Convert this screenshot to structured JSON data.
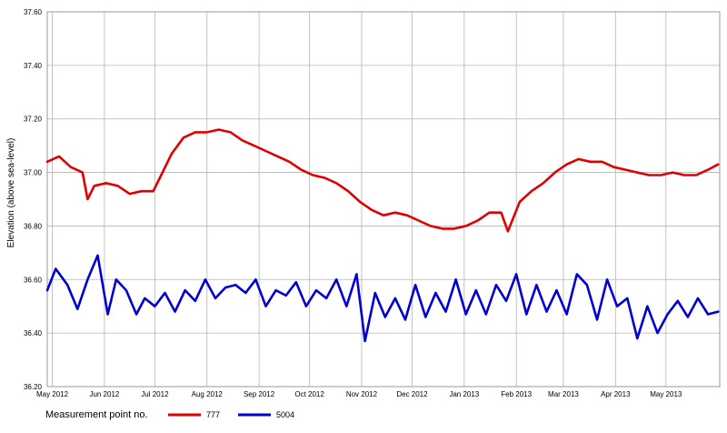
{
  "chart_data": {
    "type": "line",
    "title": "",
    "xlabel": "",
    "ylabel": "Elevation (above sea-level)",
    "ylim": [
      36.2,
      37.6
    ],
    "yticks": [
      "37.60",
      "37.40",
      "37.20",
      "37.00",
      "36.80",
      "36.60",
      "36.40",
      "36.20"
    ],
    "xlim": [
      "2012-04-28",
      "2013-06-02"
    ],
    "xticks": [
      {
        "label": "May 2012",
        "date": "2012-05-01"
      },
      {
        "label": "Jun 2012",
        "date": "2012-06-01"
      },
      {
        "label": "Jul 2012",
        "date": "2012-07-01"
      },
      {
        "label": "Aug 2012",
        "date": "2012-08-01"
      },
      {
        "label": "Sep 2012",
        "date": "2012-09-01"
      },
      {
        "label": "Oct 2012",
        "date": "2012-10-01"
      },
      {
        "label": "Nov 2012",
        "date": "2012-11-01"
      },
      {
        "label": "Dec 2012",
        "date": "2012-12-01"
      },
      {
        "label": "Jan 2013",
        "date": "2013-01-01"
      },
      {
        "label": "Feb 2013",
        "date": "2013-02-01"
      },
      {
        "label": "Mar 2013",
        "date": "2013-03-01"
      },
      {
        "label": "Apr 2013",
        "date": "2013-04-01"
      },
      {
        "label": "May 2013",
        "date": "2013-05-01"
      }
    ],
    "grid": true,
    "legend_title": "Measurement point no.",
    "legend_position": "bottom-left",
    "series": [
      {
        "name": "777",
        "color": "#e00000",
        "points": [
          [
            "2012-04-28",
            37.04
          ],
          [
            "2012-05-05",
            37.06
          ],
          [
            "2012-05-12",
            37.02
          ],
          [
            "2012-05-19",
            37.0
          ],
          [
            "2012-05-22",
            36.9
          ],
          [
            "2012-05-26",
            36.95
          ],
          [
            "2012-06-02",
            36.96
          ],
          [
            "2012-06-09",
            36.95
          ],
          [
            "2012-06-16",
            36.92
          ],
          [
            "2012-06-23",
            36.93
          ],
          [
            "2012-06-30",
            36.93
          ],
          [
            "2012-07-04",
            36.98
          ],
          [
            "2012-07-11",
            37.07
          ],
          [
            "2012-07-18",
            37.13
          ],
          [
            "2012-07-25",
            37.15
          ],
          [
            "2012-08-01",
            37.15
          ],
          [
            "2012-08-08",
            37.16
          ],
          [
            "2012-08-15",
            37.15
          ],
          [
            "2012-08-22",
            37.12
          ],
          [
            "2012-08-29",
            37.1
          ],
          [
            "2012-09-05",
            37.08
          ],
          [
            "2012-09-12",
            37.06
          ],
          [
            "2012-09-19",
            37.04
          ],
          [
            "2012-09-26",
            37.01
          ],
          [
            "2012-10-03",
            36.99
          ],
          [
            "2012-10-10",
            36.98
          ],
          [
            "2012-10-17",
            36.96
          ],
          [
            "2012-10-24",
            36.93
          ],
          [
            "2012-10-31",
            36.89
          ],
          [
            "2012-11-07",
            36.86
          ],
          [
            "2012-11-14",
            36.84
          ],
          [
            "2012-11-21",
            36.85
          ],
          [
            "2012-11-28",
            36.84
          ],
          [
            "2012-12-05",
            36.82
          ],
          [
            "2012-12-12",
            36.8
          ],
          [
            "2012-12-19",
            36.79
          ],
          [
            "2012-12-26",
            36.79
          ],
          [
            "2013-01-02",
            36.8
          ],
          [
            "2013-01-09",
            36.82
          ],
          [
            "2013-01-16",
            36.85
          ],
          [
            "2013-01-23",
            36.85
          ],
          [
            "2013-01-27",
            36.78
          ],
          [
            "2013-02-03",
            36.89
          ],
          [
            "2013-02-10",
            36.93
          ],
          [
            "2013-02-17",
            36.96
          ],
          [
            "2013-02-24",
            37.0
          ],
          [
            "2013-03-03",
            37.03
          ],
          [
            "2013-03-10",
            37.05
          ],
          [
            "2013-03-17",
            37.04
          ],
          [
            "2013-03-24",
            37.04
          ],
          [
            "2013-03-31",
            37.02
          ],
          [
            "2013-04-07",
            37.01
          ],
          [
            "2013-04-14",
            37.0
          ],
          [
            "2013-04-21",
            36.99
          ],
          [
            "2013-04-28",
            36.99
          ],
          [
            "2013-05-05",
            37.0
          ],
          [
            "2013-05-12",
            36.99
          ],
          [
            "2013-05-19",
            36.99
          ],
          [
            "2013-05-26",
            37.01
          ],
          [
            "2013-06-01",
            37.03
          ]
        ]
      },
      {
        "name": "5004",
        "color": "#0000d0",
        "points": [
          [
            "2012-04-28",
            36.56
          ],
          [
            "2012-05-03",
            36.64
          ],
          [
            "2012-05-10",
            36.58
          ],
          [
            "2012-05-16",
            36.49
          ],
          [
            "2012-05-22",
            36.6
          ],
          [
            "2012-05-28",
            36.69
          ],
          [
            "2012-06-03",
            36.47
          ],
          [
            "2012-06-08",
            36.6
          ],
          [
            "2012-06-14",
            36.56
          ],
          [
            "2012-06-20",
            36.47
          ],
          [
            "2012-06-25",
            36.53
          ],
          [
            "2012-07-01",
            36.5
          ],
          [
            "2012-07-07",
            36.55
          ],
          [
            "2012-07-13",
            36.48
          ],
          [
            "2012-07-19",
            36.56
          ],
          [
            "2012-07-25",
            36.52
          ],
          [
            "2012-07-31",
            36.6
          ],
          [
            "2012-08-06",
            36.53
          ],
          [
            "2012-08-12",
            36.57
          ],
          [
            "2012-08-18",
            36.58
          ],
          [
            "2012-08-24",
            36.55
          ],
          [
            "2012-08-30",
            36.6
          ],
          [
            "2012-09-05",
            36.5
          ],
          [
            "2012-09-11",
            36.56
          ],
          [
            "2012-09-17",
            36.54
          ],
          [
            "2012-09-23",
            36.59
          ],
          [
            "2012-09-29",
            36.5
          ],
          [
            "2012-10-05",
            36.56
          ],
          [
            "2012-10-11",
            36.53
          ],
          [
            "2012-10-17",
            36.6
          ],
          [
            "2012-10-23",
            36.5
          ],
          [
            "2012-10-29",
            36.62
          ],
          [
            "2012-11-03",
            36.37
          ],
          [
            "2012-11-09",
            36.55
          ],
          [
            "2012-11-15",
            36.46
          ],
          [
            "2012-11-21",
            36.53
          ],
          [
            "2012-11-27",
            36.45
          ],
          [
            "2012-12-03",
            36.58
          ],
          [
            "2012-12-09",
            36.46
          ],
          [
            "2012-12-15",
            36.55
          ],
          [
            "2012-12-21",
            36.48
          ],
          [
            "2012-12-27",
            36.6
          ],
          [
            "2013-01-02",
            36.47
          ],
          [
            "2013-01-08",
            36.56
          ],
          [
            "2013-01-14",
            36.47
          ],
          [
            "2013-01-20",
            36.58
          ],
          [
            "2013-01-26",
            36.52
          ],
          [
            "2013-02-01",
            36.62
          ],
          [
            "2013-02-07",
            36.47
          ],
          [
            "2013-02-13",
            36.58
          ],
          [
            "2013-02-19",
            36.48
          ],
          [
            "2013-02-25",
            36.56
          ],
          [
            "2013-03-03",
            36.47
          ],
          [
            "2013-03-09",
            36.62
          ],
          [
            "2013-03-15",
            36.58
          ],
          [
            "2013-03-21",
            36.45
          ],
          [
            "2013-03-27",
            36.6
          ],
          [
            "2013-04-02",
            36.5
          ],
          [
            "2013-04-08",
            36.53
          ],
          [
            "2013-04-14",
            36.38
          ],
          [
            "2013-04-20",
            36.5
          ],
          [
            "2013-04-26",
            36.4
          ],
          [
            "2013-05-02",
            36.47
          ],
          [
            "2013-05-08",
            36.52
          ],
          [
            "2013-05-14",
            36.46
          ],
          [
            "2013-05-20",
            36.53
          ],
          [
            "2013-05-26",
            36.47
          ],
          [
            "2013-06-01",
            36.48
          ]
        ]
      }
    ]
  }
}
